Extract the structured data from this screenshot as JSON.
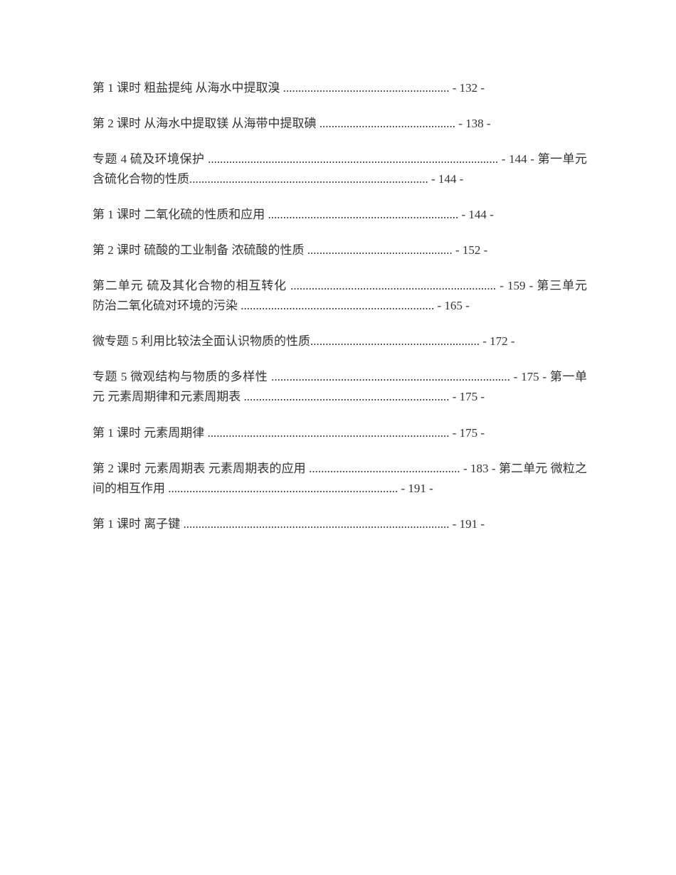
{
  "document": {
    "type": "table_of_contents",
    "font_family": "SimSun",
    "font_size": 17,
    "text_color": "#333333",
    "background_color": "#ffffff",
    "line_height": 1.65,
    "entry_spacing": 22,
    "entries": [
      {
        "text": "第 1 课时  粗盐提纯 从海水中提取溴  ....................................................... - 132 -"
      },
      {
        "text": "第 2 课时  从海水中提取镁 从海带中提取碘 ............................................. - 138 -"
      },
      {
        "text": "专题 4 硫及环境保护 ................................................................................................ - 144 - 第一单元 含硫化合物的性质............................................................................... - 144 -"
      },
      {
        "text": "第 1 课时  二氧化硫的性质和应用 ............................................................... - 144 -"
      },
      {
        "text": "第 2 课时  硫酸的工业制备 浓硫酸的性质  ................................................ - 152 -"
      },
      {
        "text": "第二单元 硫及其化合物的相互转化 ....................................................................  - 159 -  第三单元 防治二氧化硫对环境的污染 ................................................................  - 165 -"
      },
      {
        "text": "微专题 5 利用比较法全面认识物质的性质........................................................  - 172 -"
      },
      {
        "text": "专题 5 微观结构与物质的多样性 ............................................................................... - 175 -  第一单元 元素周期律和元素周期表 .................................................................... - 175 -"
      },
      {
        "text": "第 1 课时  元素周期律 ................................................................................  - 175 -"
      },
      {
        "text": "第 2 课时  元素周期表 元素周期表的应用 .................................................. - 183 -  第二单元 微粒之间的相互作用 ............................................................................ - 191 -"
      },
      {
        "text": "第 1 课时  离子键 ........................................................................................ - 191 -"
      }
    ]
  }
}
